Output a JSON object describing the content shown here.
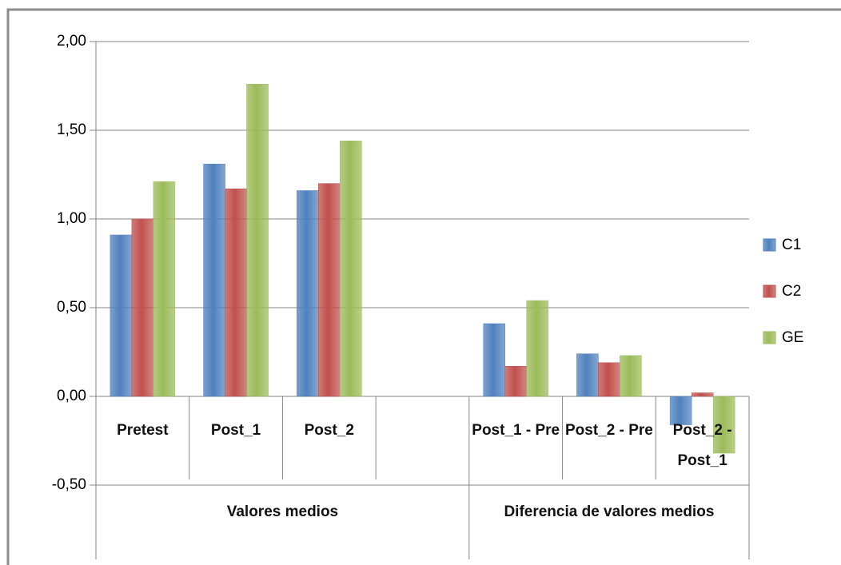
{
  "chart_data": {
    "type": "bar",
    "categories": [
      "Pretest",
      "Post_1",
      "Post_2",
      null,
      "Post_1 - Pre",
      "Post_2 - Pre",
      "Post_2 - Post_1"
    ],
    "group_labels": [
      "Valores medios",
      "Diferencia de valores medios"
    ],
    "series": [
      {
        "name": "C1",
        "color": "#4f81bd",
        "values": [
          0.91,
          1.31,
          1.16,
          null,
          0.41,
          0.24,
          -0.16
        ]
      },
      {
        "name": "C2",
        "color": "#c0504d",
        "values": [
          1.0,
          1.17,
          1.2,
          null,
          0.17,
          0.19,
          0.02
        ]
      },
      {
        "name": "GE",
        "color": "#9bbb59",
        "values": [
          1.21,
          1.76,
          1.44,
          null,
          0.54,
          0.23,
          -0.32
        ]
      }
    ],
    "ylim": [
      -0.5,
      2.0
    ],
    "yticks": [
      {
        "value": -0.5,
        "label": "-0,50"
      },
      {
        "value": 0,
        "label": "0,00"
      },
      {
        "value": 0.5,
        "label": "0,50"
      },
      {
        "value": 1.0,
        "label": "1,00"
      },
      {
        "value": 1.5,
        "label": "1,50"
      },
      {
        "value": 2.0,
        "label": "2,00"
      }
    ],
    "grid": true,
    "legend": "right"
  }
}
